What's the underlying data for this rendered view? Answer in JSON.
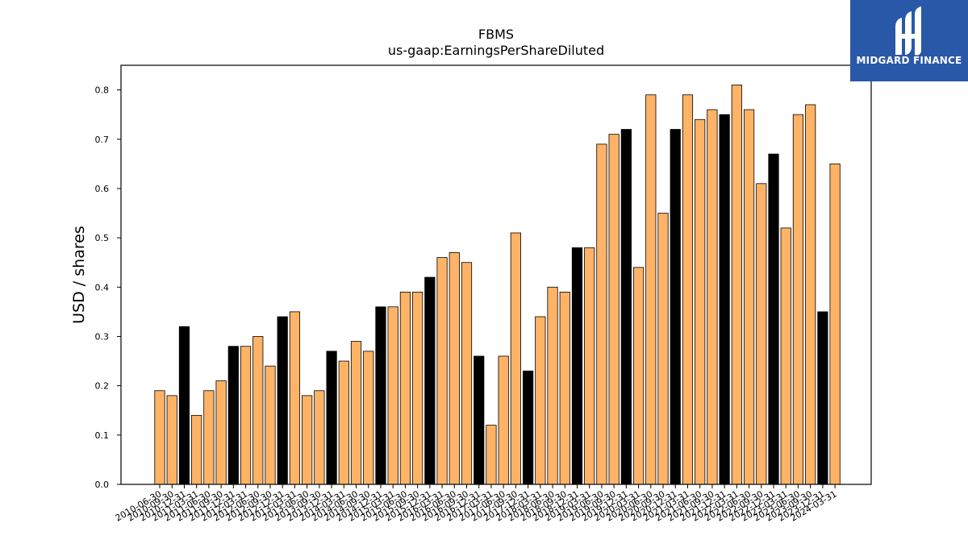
{
  "chart_data": {
    "type": "bar",
    "title": "FBMS",
    "subtitle": "us-gaap:EarningsPerShareDiluted",
    "xlabel": "",
    "ylabel": "USD / shares",
    "ylim": [
      0,
      0.85
    ],
    "yticks": [
      0.0,
      0.1,
      0.2,
      0.3,
      0.4,
      0.5,
      0.6,
      0.7,
      0.8
    ],
    "ytick_labels": [
      "0.0",
      "0.1",
      "0.2",
      "0.3",
      "0.4",
      "0.5",
      "0.6",
      "0.7",
      "0.8"
    ],
    "categories": [
      "2010-06-30",
      "2010-09-30",
      "2010-12-31",
      "2011-03-31",
      "2011-06-30",
      "2011-09-30",
      "2011-12-31",
      "2012-03-31",
      "2012-06-30",
      "2012-09-30",
      "2012-12-31",
      "2013-03-31",
      "2013-06-30",
      "2013-09-30",
      "2013-12-31",
      "2014-03-31",
      "2014-06-30",
      "2014-09-30",
      "2014-12-31",
      "2015-03-31",
      "2015-06-30",
      "2015-09-30",
      "2015-12-31",
      "2016-03-31",
      "2016-06-30",
      "2016-09-30",
      "2016-12-31",
      "2017-03-31",
      "2017-06-30",
      "2017-09-30",
      "2017-12-31",
      "2018-03-31",
      "2018-06-30",
      "2018-09-30",
      "2018-12-31",
      "2019-03-31",
      "2019-06-30",
      "2019-09-30",
      "2019-12-31",
      "2020-03-31",
      "2020-06-30",
      "2020-09-30",
      "2020-12-31",
      "2021-03-31",
      "2021-06-30",
      "2021-09-30",
      "2021-12-31",
      "2022-03-31",
      "2022-06-30",
      "2022-09-30",
      "2022-12-31",
      "2023-03-31",
      "2023-06-30",
      "2023-09-30",
      "2023-12-31",
      "2024-03-31"
    ],
    "values": [
      0.19,
      0.18,
      0.32,
      0.14,
      0.19,
      0.21,
      0.28,
      0.28,
      0.3,
      0.24,
      0.34,
      0.35,
      0.18,
      0.19,
      0.27,
      0.25,
      0.29,
      0.27,
      0.36,
      0.36,
      0.39,
      0.39,
      0.42,
      0.46,
      0.47,
      0.45,
      0.26,
      0.12,
      0.26,
      0.51,
      0.23,
      0.34,
      0.4,
      0.39,
      0.48,
      0.48,
      0.69,
      0.71,
      0.72,
      0.44,
      0.79,
      0.55,
      0.72,
      0.79,
      0.74,
      0.76,
      0.75,
      0.81,
      0.76,
      0.61,
      0.67,
      0.52,
      0.75,
      0.77,
      0.35,
      0.65
    ],
    "highlight_q4": true,
    "colors": {
      "bar": "#ffb366",
      "bar_q4": "#000000",
      "edge": "#000000",
      "logo_bg": "#2a58a8"
    },
    "grid": false,
    "legend": "none"
  },
  "logo": {
    "text": "MIDGARD FINANCE",
    "icon": "midgard-m-logo-icon"
  }
}
